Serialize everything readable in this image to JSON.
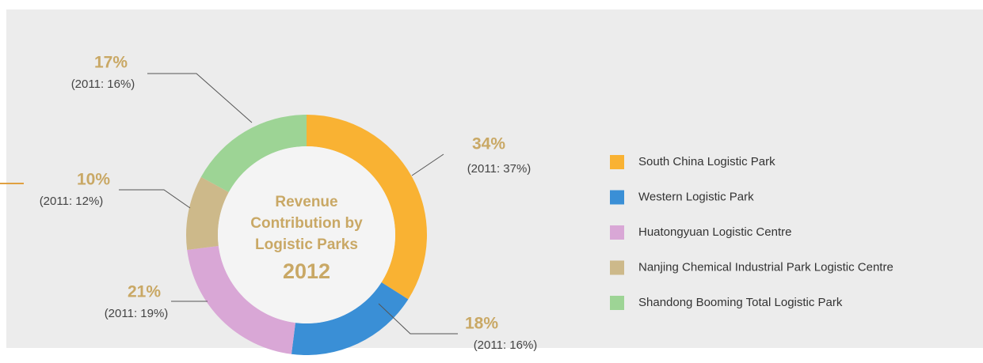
{
  "chart_data": {
    "type": "donut",
    "title": [
      "Revenue",
      "Contribution by",
      "Logistic Parks"
    ],
    "subtitle": "2012",
    "categories": [
      "South China Logistic Park",
      "Western Logistic Park",
      "Huatongyuan Logistic Centre",
      "Nanjing Chemical Industrial Park Logistic Centre",
      "Shandong Booming Total Logistic Park"
    ],
    "values": [
      34,
      18,
      21,
      10,
      17
    ],
    "value_labels": [
      "34%",
      "18%",
      "21%",
      "10%",
      "17%"
    ],
    "prior_labels": [
      "(2011: 37%)",
      "(2011: 16%)",
      "(2011: 19%)",
      "(2011: 12%)",
      "(2011: 16%)"
    ],
    "colors": [
      "#f9b233",
      "#3a8fd6",
      "#d9a7d6",
      "#cdb98a",
      "#9dd495"
    ],
    "legend": "right"
  }
}
